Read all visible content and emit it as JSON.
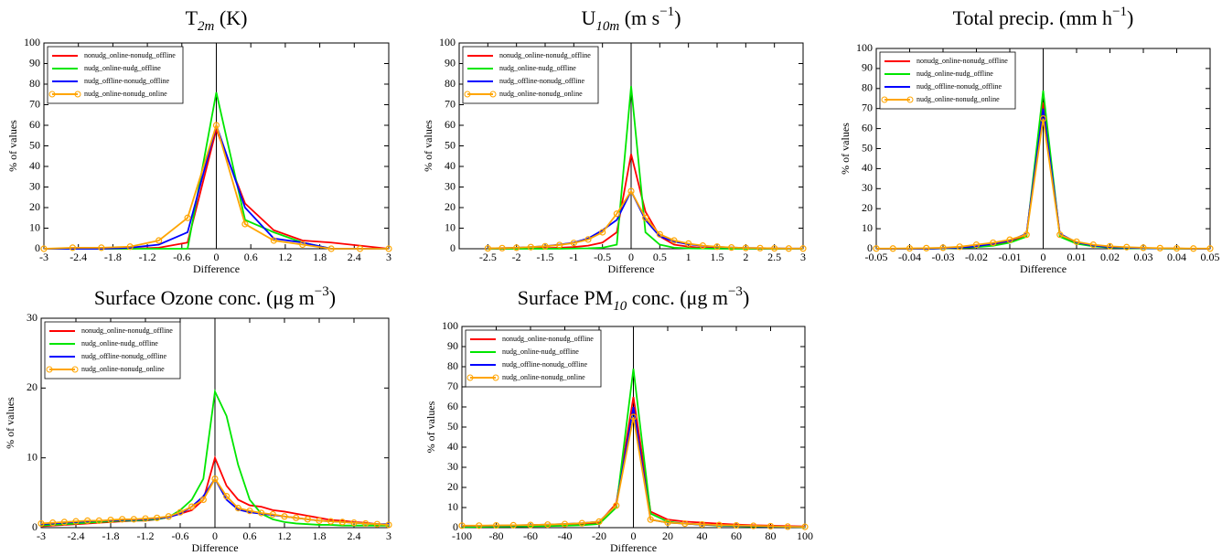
{
  "chart_data": [
    {
      "type": "line",
      "title": [
        {
          "text": "T"
        },
        {
          "text": "2m",
          "shift": "sub"
        },
        {
          "text": " (K)"
        }
      ],
      "xlabel": "Difference",
      "ylabel": "% of values",
      "x": [
        -3,
        -2.5,
        -2,
        -1.5,
        -1,
        -0.5,
        0,
        0.5,
        1,
        1.5,
        2,
        2.5,
        3
      ],
      "xlim": [
        -3,
        3
      ],
      "ylim": [
        0,
        100
      ],
      "xticks": [
        -3,
        -2.4,
        -1.8,
        -1.2,
        -0.6,
        0,
        0.6,
        1.2,
        1.8,
        2.4,
        3
      ],
      "yticks": [
        0,
        10,
        20,
        30,
        40,
        50,
        60,
        70,
        80,
        90,
        100
      ],
      "legend": "upper left",
      "series": [
        {
          "name": "nonudg_online-nonudg_offline",
          "color": "#ff0000",
          "values": [
            0,
            0,
            0,
            0,
            0.5,
            3,
            58,
            22,
            9,
            4,
            3,
            1.5,
            0
          ]
        },
        {
          "name": "nudg_online-nudg_offline",
          "color": "#00e600",
          "values": [
            0,
            0,
            0,
            0,
            0,
            0,
            76,
            14,
            8,
            3,
            0,
            0,
            0
          ]
        },
        {
          "name": "nudg_offline-nonudg_offline",
          "color": "#0000ff",
          "values": [
            0,
            0,
            0,
            0.5,
            2,
            8,
            60,
            20,
            5,
            3,
            0,
            0,
            0
          ]
        },
        {
          "name": "nudg_online-nonudg_online",
          "color": "#ffa500",
          "marker": "circle",
          "values": [
            0,
            0.5,
            0.5,
            1,
            4,
            15,
            60,
            12,
            4,
            2,
            0,
            0,
            0
          ]
        }
      ]
    },
    {
      "type": "line",
      "title": [
        {
          "text": "U"
        },
        {
          "text": "10m",
          "shift": "sub"
        },
        {
          "text": " (m s"
        },
        {
          "text": "−1",
          "shift": "super"
        },
        {
          "text": ")"
        }
      ],
      "xlabel": "Difference",
      "ylabel": "% of values",
      "x": [
        -2.5,
        -2.25,
        -2,
        -1.75,
        -1.5,
        -1.25,
        -1,
        -0.75,
        -0.5,
        -0.25,
        0,
        0.25,
        0.5,
        0.75,
        1,
        1.25,
        1.5,
        1.75,
        2,
        2.25,
        2.5,
        2.75,
        3
      ],
      "xlim": [
        -3,
        3
      ],
      "ylim": [
        0,
        100
      ],
      "xticks": [
        -2.5,
        -2,
        -1.5,
        -1,
        -0.5,
        0,
        0.5,
        1,
        1.5,
        2,
        2.5,
        3
      ],
      "yticks": [
        0,
        10,
        20,
        30,
        40,
        50,
        60,
        70,
        80,
        90,
        100
      ],
      "legend": "upper left",
      "series": [
        {
          "name": "nonudg_online-nonudg_offline",
          "color": "#ff0000",
          "values": [
            0,
            0,
            0.1,
            0.2,
            0.3,
            0.5,
            0.8,
            1.5,
            3,
            8,
            46,
            18,
            6,
            2,
            1,
            0.5,
            0.3,
            0.2,
            0.1,
            0,
            0,
            0,
            0
          ]
        },
        {
          "name": "nudg_online-nudg_offline",
          "color": "#00e600",
          "values": [
            0,
            0,
            0,
            0,
            0,
            0,
            0.1,
            0.2,
            0.5,
            2,
            79,
            8,
            2,
            0.5,
            0.2,
            0.1,
            0,
            0,
            0,
            0,
            0,
            0,
            0
          ]
        },
        {
          "name": "nudg_offline-nonudg_offline",
          "color": "#0000ff",
          "values": [
            0.2,
            0.3,
            0.5,
            0.8,
            1.2,
            2,
            3,
            5,
            9,
            14,
            28,
            14,
            6,
            3.5,
            2.2,
            1.4,
            0.9,
            0.6,
            0.4,
            0.3,
            0.2,
            0.1,
            0.1
          ]
        },
        {
          "name": "nudg_online-nonudg_online",
          "color": "#ffa500",
          "marker": "circle",
          "values": [
            0.2,
            0.3,
            0.5,
            0.8,
            1.2,
            1.8,
            2.8,
            4.5,
            8,
            17,
            28,
            15,
            7,
            4,
            2.5,
            1.5,
            1,
            0.6,
            0.4,
            0.3,
            0.2,
            0.1,
            0.1
          ]
        }
      ]
    },
    {
      "type": "line",
      "title": [
        {
          "text": "Total precip. (mm h"
        },
        {
          "text": "−1",
          "shift": "super"
        },
        {
          "text": ")"
        }
      ],
      "xlabel": "Difference",
      "ylabel": "% of values",
      "x": [
        -0.05,
        -0.045,
        -0.04,
        -0.035,
        -0.03,
        -0.025,
        -0.02,
        -0.015,
        -0.01,
        -0.005,
        0,
        0.005,
        0.01,
        0.015,
        0.02,
        0.025,
        0.03,
        0.035,
        0.04,
        0.045,
        0.05
      ],
      "xlim": [
        -0.05,
        0.05
      ],
      "ylim": [
        0,
        100
      ],
      "xticks": [
        -0.05,
        -0.04,
        -0.03,
        -0.02,
        -0.01,
        0,
        0.01,
        0.02,
        0.03,
        0.04,
        0.05
      ],
      "yticks": [
        0,
        10,
        20,
        30,
        40,
        50,
        60,
        70,
        80,
        90,
        100
      ],
      "legend": "upper left",
      "series": [
        {
          "name": "nonudg_online-nonudg_offline",
          "color": "#ff0000",
          "values": [
            0,
            0,
            0,
            0,
            0.2,
            0.5,
            1,
            2,
            3.5,
            7,
            73,
            7,
            3,
            1.5,
            0.8,
            0.5,
            0.3,
            0.2,
            0.1,
            0,
            0
          ]
        },
        {
          "name": "nudg_online-nudg_offline",
          "color": "#00e600",
          "values": [
            0,
            0,
            0,
            0,
            0.2,
            0.4,
            0.8,
            1.5,
            3,
            6,
            79,
            6,
            2.5,
            1.2,
            0.6,
            0.3,
            0.2,
            0.1,
            0,
            0,
            0
          ]
        },
        {
          "name": "nudg_offline-nonudg_offline",
          "color": "#0000ff",
          "values": [
            0,
            0,
            0,
            0,
            0.3,
            0.6,
            1.2,
            2.5,
            4,
            7.5,
            70,
            7.5,
            3.2,
            1.6,
            0.8,
            0.5,
            0.3,
            0.2,
            0.1,
            0,
            0
          ]
        },
        {
          "name": "nudg_online-nonudg_online",
          "color": "#ffa500",
          "marker": "circle",
          "values": [
            0.1,
            0.1,
            0.2,
            0.3,
            0.5,
            1,
            2,
            3,
            4.5,
            7,
            65,
            7,
            3.5,
            2,
            1.2,
            0.8,
            0.5,
            0.3,
            0.2,
            0.1,
            0.1
          ]
        }
      ]
    },
    {
      "type": "line",
      "title": [
        {
          "text": "Surface Ozone conc. (μg m"
        },
        {
          "text": "−3",
          "shift": "super"
        },
        {
          "text": ")"
        }
      ],
      "xlabel": "Difference",
      "ylabel": "% of values",
      "x": [
        -3,
        -2.8,
        -2.6,
        -2.4,
        -2.2,
        -2,
        -1.8,
        -1.6,
        -1.4,
        -1.2,
        -1,
        -0.8,
        -0.6,
        -0.4,
        -0.2,
        0,
        0.2,
        0.4,
        0.6,
        0.8,
        1,
        1.2,
        1.4,
        1.6,
        1.8,
        2,
        2.2,
        2.4,
        2.6,
        2.8,
        3
      ],
      "xlim": [
        -3,
        3
      ],
      "ylim": [
        0,
        30
      ],
      "xticks": [
        -3,
        -2.4,
        -1.8,
        -1.2,
        -0.6,
        0,
        0.6,
        1.2,
        1.8,
        2.4,
        3
      ],
      "yticks": [
        0,
        10,
        20,
        30
      ],
      "legend": "upper left",
      "series": [
        {
          "name": "nonudg_online-nonudg_offline",
          "color": "#ff0000",
          "values": [
            0.2,
            0.3,
            0.4,
            0.5,
            0.6,
            0.7,
            0.8,
            0.9,
            1,
            1,
            1.2,
            1.5,
            2,
            2.5,
            4,
            10,
            6,
            4,
            3.2,
            3,
            2.5,
            2.3,
            2,
            1.7,
            1.4,
            1.1,
            1,
            0.8,
            0.7,
            0.5,
            0.4
          ]
        },
        {
          "name": "nudg_online-nudg_offline",
          "color": "#00e600",
          "values": [
            0.3,
            0.4,
            0.5,
            0.6,
            0.7,
            0.8,
            0.9,
            1,
            1,
            1.1,
            1.2,
            1.5,
            2.5,
            4,
            7,
            19.5,
            16,
            9,
            4,
            2,
            1.2,
            0.8,
            0.6,
            0.5,
            0.4,
            0.4,
            0.3,
            0.3,
            0.3,
            0.3,
            0.3
          ]
        },
        {
          "name": "nudg_offline-nonudg_offline",
          "color": "#0000ff",
          "values": [
            0.5,
            0.6,
            0.7,
            0.8,
            0.9,
            1,
            1,
            1.1,
            1.1,
            1.2,
            1.3,
            1.5,
            2,
            3,
            4.5,
            7,
            4,
            2.6,
            2.2,
            2,
            1.8,
            1.6,
            1.4,
            1.2,
            1,
            0.9,
            0.8,
            0.7,
            0.6,
            0.5,
            0.5
          ]
        },
        {
          "name": "nudg_online-nonudg_online",
          "color": "#ffa500",
          "marker": "circle",
          "values": [
            0.6,
            0.7,
            0.8,
            0.9,
            1,
            1,
            1.1,
            1.2,
            1.2,
            1.3,
            1.4,
            1.6,
            2.2,
            3,
            4,
            7,
            4.5,
            2.8,
            2.4,
            2.1,
            1.9,
            1.6,
            1.4,
            1.2,
            1,
            0.9,
            0.8,
            0.7,
            0.6,
            0.5,
            0.4
          ]
        }
      ]
    },
    {
      "type": "line",
      "title": [
        {
          "text": "Surface PM"
        },
        {
          "text": "10",
          "shift": "sub"
        },
        {
          "text": " conc. (μg m"
        },
        {
          "text": "−3",
          "shift": "super"
        },
        {
          "text": ")"
        }
      ],
      "xlabel": "Difference",
      "ylabel": "% of values",
      "x": [
        -100,
        -90,
        -80,
        -70,
        -60,
        -50,
        -40,
        -30,
        -20,
        -10,
        0,
        10,
        20,
        30,
        40,
        50,
        60,
        70,
        80,
        90,
        100
      ],
      "xlim": [
        -100,
        100
      ],
      "ylim": [
        0,
        100
      ],
      "xticks": [
        -100,
        -80,
        -60,
        -40,
        -20,
        0,
        20,
        40,
        60,
        80,
        100
      ],
      "yticks": [
        0,
        10,
        20,
        30,
        40,
        50,
        60,
        70,
        80,
        90,
        100
      ],
      "legend": "upper left",
      "series": [
        {
          "name": "nonudg_online-nonudg_offline",
          "color": "#ff0000",
          "values": [
            0.5,
            0.6,
            0.7,
            0.8,
            1,
            1.2,
            1.5,
            1.8,
            2.5,
            12,
            65,
            8,
            4,
            3,
            2.5,
            2,
            1.5,
            1.2,
            1,
            0.8,
            0.6
          ]
        },
        {
          "name": "nudg_online-nudg_offline",
          "color": "#00e600",
          "values": [
            0.3,
            0.4,
            0.5,
            0.6,
            0.7,
            0.8,
            1,
            1.2,
            1.8,
            10,
            79,
            7,
            3,
            2,
            1.5,
            1,
            0.8,
            0.6,
            0.5,
            0.4,
            0.3
          ]
        },
        {
          "name": "nudg_offline-nonudg_offline",
          "color": "#0000ff",
          "values": [
            0.8,
            0.9,
            1,
            1.1,
            1.3,
            1.5,
            1.8,
            2.2,
            3,
            11,
            60,
            4,
            2.5,
            2,
            1.5,
            1.2,
            1,
            0.8,
            0.6,
            0.5,
            0.4
          ]
        },
        {
          "name": "nudg_online-nonudg_online",
          "color": "#ffa500",
          "marker": "circle",
          "values": [
            1,
            1,
            1.1,
            1.2,
            1.3,
            1.5,
            1.8,
            2.2,
            3,
            11,
            55,
            4,
            2.5,
            2,
            1.6,
            1.3,
            1.1,
            0.9,
            0.7,
            0.5,
            0.4
          ]
        }
      ]
    }
  ]
}
